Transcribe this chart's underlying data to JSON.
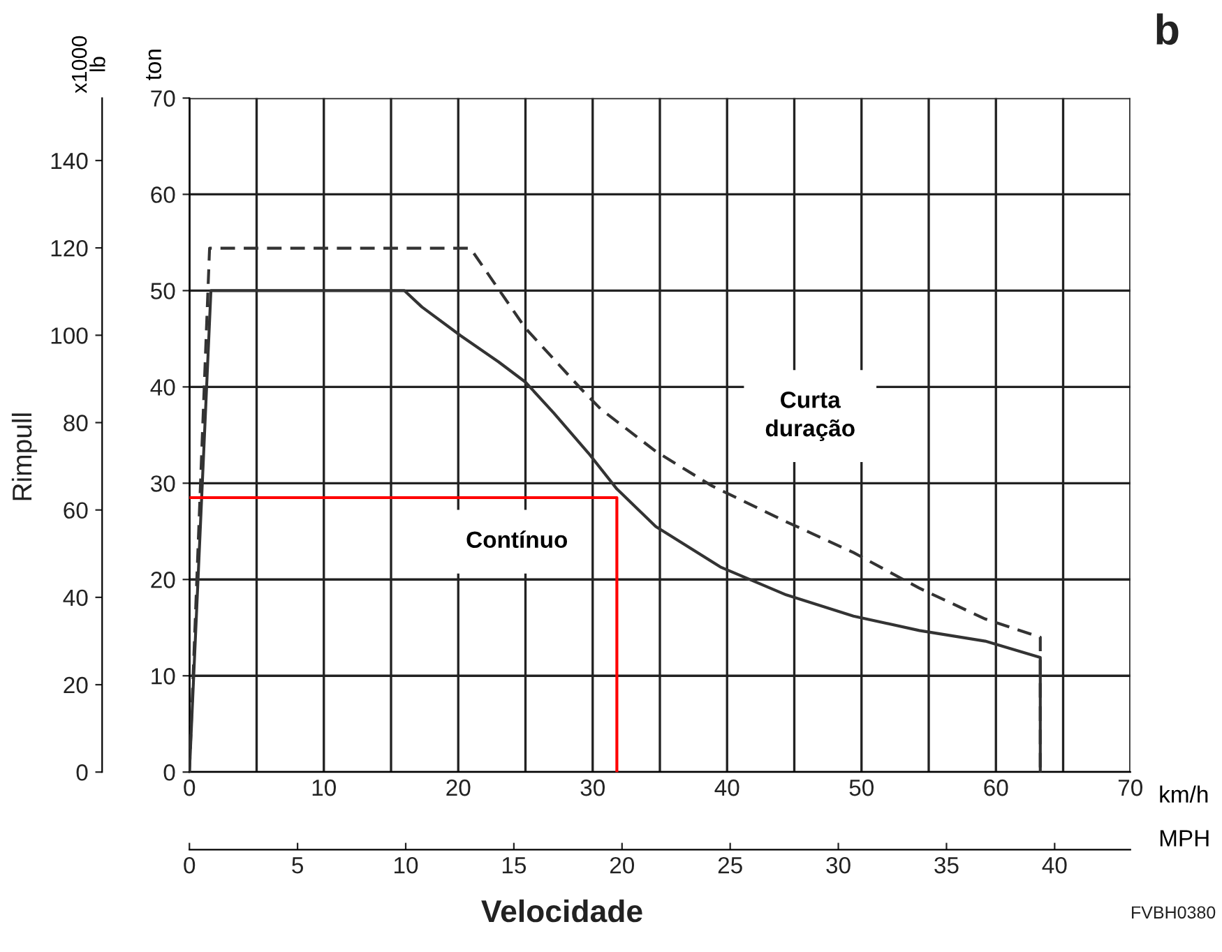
{
  "chart_data": {
    "type": "line",
    "xlabel": "km/h",
    "x2label": "MPH",
    "ylabel": "ton",
    "y2label": "x1000\nlb",
    "xlim": [
      0,
      70
    ],
    "xticks": [
      0,
      {
        "value": 5,
        "label": null
      },
      10,
      {
        "value": 15,
        "label": null
      },
      20,
      {
        "value": 25,
        "label": null
      },
      30,
      {
        "value": 35,
        "label": null
      },
      40,
      {
        "value": 45,
        "label": null
      },
      50,
      {
        "value": 55,
        "label": null
      },
      60,
      {
        "value": 65,
        "label": null
      },
      70
    ],
    "x2lim": [
      0,
      43.5
    ],
    "x2ticks": [
      0,
      5,
      10,
      15,
      20,
      25,
      30,
      35,
      40
    ],
    "ylim": [
      0,
      70
    ],
    "yticks": [
      0,
      10,
      20,
      30,
      40,
      50,
      60,
      70
    ],
    "y2lim": [
      0,
      154.3
    ],
    "y2ticks": [
      0,
      20,
      40,
      60,
      80,
      100,
      120,
      140
    ],
    "grid": true,
    "series": [
      {
        "color": "#333333",
        "line_style": "solid",
        "x": [
          0,
          1.6,
          16.0,
          17.3,
          20.2,
          23.0,
          25.0,
          27.1,
          29.7,
          31.8,
          34.7,
          39.5,
          44.4,
          49.4,
          54.3,
          59.2,
          63.3,
          63.3
        ],
        "values": [
          0,
          50,
          50,
          48.3,
          45.3,
          42.6,
          40.5,
          37.3,
          33.1,
          29.4,
          25.5,
          21.3,
          18.4,
          16.2,
          14.7,
          13.6,
          11.9,
          0
        ]
      },
      {
        "color": "#333333",
        "line_style": "dashed",
        "x": [
          0,
          1.5,
          20.9,
          25.0,
          29.2,
          30.6,
          34.7,
          38.9,
          44.4,
          49.4,
          54.3,
          59.2,
          63.3,
          63.3
        ],
        "values": [
          0,
          54.4,
          54.4,
          46.1,
          39.7,
          37.7,
          33.3,
          29.7,
          26.0,
          22.8,
          19.1,
          15.9,
          14.0,
          0
        ]
      },
      {
        "color": "#ff0000",
        "line_style": "solid",
        "x": [
          0,
          31.8,
          31.8
        ],
        "values": [
          28.5,
          28.5,
          0
        ]
      }
    ],
    "annotations": [
      "Contínuo",
      "Curta\nduração",
      "Rimpull",
      "Velocidade",
      "b",
      "FVBH0380"
    ]
  }
}
